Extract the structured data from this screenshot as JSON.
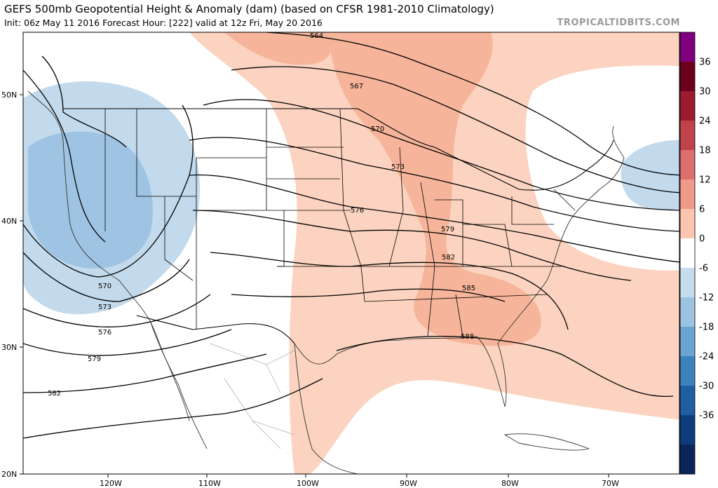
{
  "header": {
    "title": "GEFS 500mb Geopotential Height & Anomaly (dam) (based on CFSR 1981-2010 Climatology)",
    "subtitle": "Init: 06z May 11 2016   Forecast Hour: [222]   valid at 12z Fri, May 20 2016",
    "brand": "TROPICALTIDBITS.COM"
  },
  "axes": {
    "lat_labels": [
      "50N",
      "40N",
      "30N",
      "20N"
    ],
    "lon_labels": [
      "120W",
      "110W",
      "100W",
      "90W",
      "80W",
      "70W"
    ]
  },
  "contours": {
    "labels": [
      "564",
      "567",
      "570",
      "573",
      "576",
      "579",
      "582",
      "585",
      "588",
      "570",
      "573",
      "576",
      "579",
      "582"
    ]
  },
  "colorbar": {
    "ticks": [
      "36",
      "30",
      "24",
      "18",
      "12",
      "6",
      "0",
      "-6",
      "-12",
      "-18",
      "-24",
      "-30",
      "-36"
    ],
    "colors": [
      "#800080",
      "#6b001e",
      "#9b1c30",
      "#c0434c",
      "#dc6e6e",
      "#ef9a88",
      "#fbc5b0",
      "#ffffff",
      "#c6dcee",
      "#9cc3e2",
      "#6aa4d0",
      "#3c82bd",
      "#1f5ea0",
      "#0e3d7c",
      "#0b245a"
    ]
  },
  "anomaly_colors": {
    "positive_light": "#fbd3c0",
    "positive_medium": "#f6b59a",
    "negative_light": "#c2daec",
    "negative_medium": "#9fc4e3"
  }
}
